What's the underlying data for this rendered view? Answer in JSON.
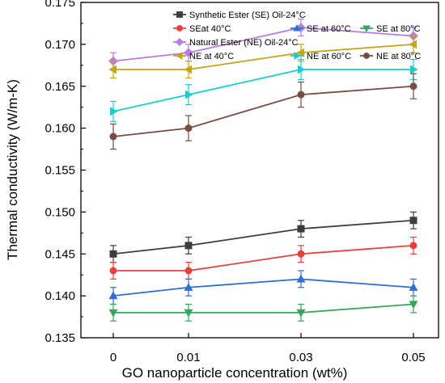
{
  "chart_data": {
    "type": "line",
    "title": "",
    "xlabel": "GO nanoparticle concentration (wt%)",
    "ylabel": "Thermal conductivity (W/m-K)",
    "categories": [
      "0",
      "0.01",
      "0.03",
      "0.05"
    ],
    "ylim": [
      0.135,
      0.175
    ],
    "yticks": [
      "0.135",
      "0.140",
      "0.145",
      "0.150",
      "0.155",
      "0.160",
      "0.165",
      "0.170",
      "0.175"
    ],
    "grid": false,
    "legend_position": "top",
    "series": [
      {
        "name": "Synthetic Ester (SE) Oil-24°C",
        "color": "#3d3d3d",
        "marker": "square",
        "values": [
          0.145,
          0.146,
          0.148,
          0.149
        ],
        "errors": [
          0.001,
          0.001,
          0.001,
          0.001
        ]
      },
      {
        "name": "SEat 40°C",
        "color": "#e8403d",
        "marker": "circle",
        "values": [
          0.143,
          0.143,
          0.145,
          0.146
        ],
        "errors": [
          0.001,
          0.001,
          0.001,
          0.001
        ]
      },
      {
        "name": "SE at 60°C",
        "color": "#2f6fd6",
        "marker": "triangle-up",
        "values": [
          0.14,
          0.141,
          0.142,
          0.141
        ],
        "errors": [
          0.001,
          0.001,
          0.001,
          0.001
        ]
      },
      {
        "name": "SE at 80°C",
        "color": "#3aa55a",
        "marker": "triangle-down",
        "values": [
          0.138,
          0.138,
          0.138,
          0.139
        ],
        "errors": [
          0.001,
          0.001,
          0.001,
          0.001
        ]
      },
      {
        "name": "Natural Ester (NE) Oil-24°C",
        "color": "#b67ee0",
        "marker": "diamond",
        "values": [
          0.168,
          0.169,
          0.172,
          0.171
        ],
        "errors": [
          0.001,
          0.001,
          0.001,
          0.001
        ]
      },
      {
        "name": "NE at 40°C",
        "color": "#c4a51b",
        "marker": "triangle-left",
        "values": [
          0.167,
          0.167,
          0.169,
          0.17
        ],
        "errors": [
          0.001,
          0.001,
          0.001,
          0.001
        ]
      },
      {
        "name": "NE at 60°C",
        "color": "#1ccdd0",
        "marker": "triangle-right",
        "values": [
          0.162,
          0.164,
          0.167,
          0.167
        ],
        "errors": [
          0.0012,
          0.0012,
          0.0012,
          0.0012
        ]
      },
      {
        "name": "NE at 80°C",
        "color": "#7a4a45",
        "marker": "circle",
        "values": [
          0.159,
          0.16,
          0.164,
          0.165
        ],
        "errors": [
          0.0015,
          0.0015,
          0.0015,
          0.0015
        ]
      }
    ]
  }
}
